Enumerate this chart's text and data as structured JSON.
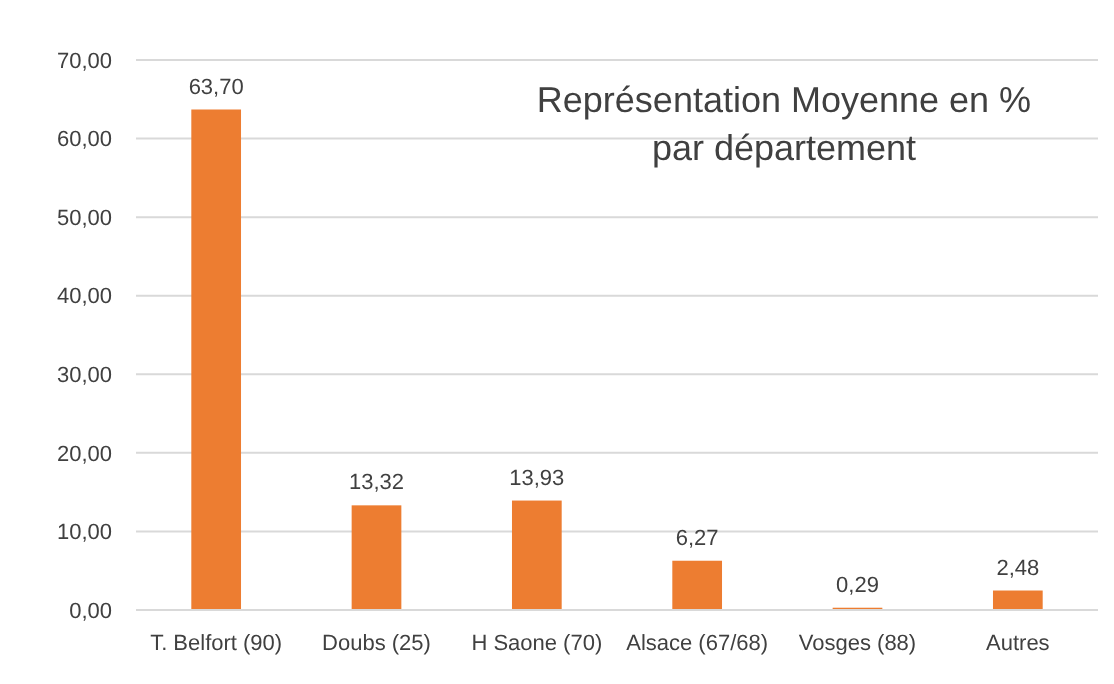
{
  "chart_data": {
    "type": "bar",
    "title": "Représentation Moyenne en % par département",
    "categories": [
      "T. Belfort (90)",
      "Doubs (25)",
      "H Saone (70)",
      "Alsace (67/68)",
      "Vosges (88)",
      "Autres"
    ],
    "values": [
      63.7,
      13.32,
      13.93,
      6.27,
      0.29,
      2.48
    ],
    "value_labels": [
      "63,70",
      "13,32",
      "13,93",
      "6,27",
      "0,29",
      "2,48"
    ],
    "color": "#ed7d31",
    "ylim": [
      0,
      70
    ],
    "yticks": [
      {
        "value": 0,
        "label": "0,00"
      },
      {
        "value": 10,
        "label": "10,00"
      },
      {
        "value": 20,
        "label": "20,00"
      },
      {
        "value": 30,
        "label": "30,00"
      },
      {
        "value": 40,
        "label": "40,00"
      },
      {
        "value": 50,
        "label": "50,00"
      },
      {
        "value": 60,
        "label": "60,00"
      },
      {
        "value": 70,
        "label": "70,00"
      }
    ],
    "grid": "y"
  }
}
